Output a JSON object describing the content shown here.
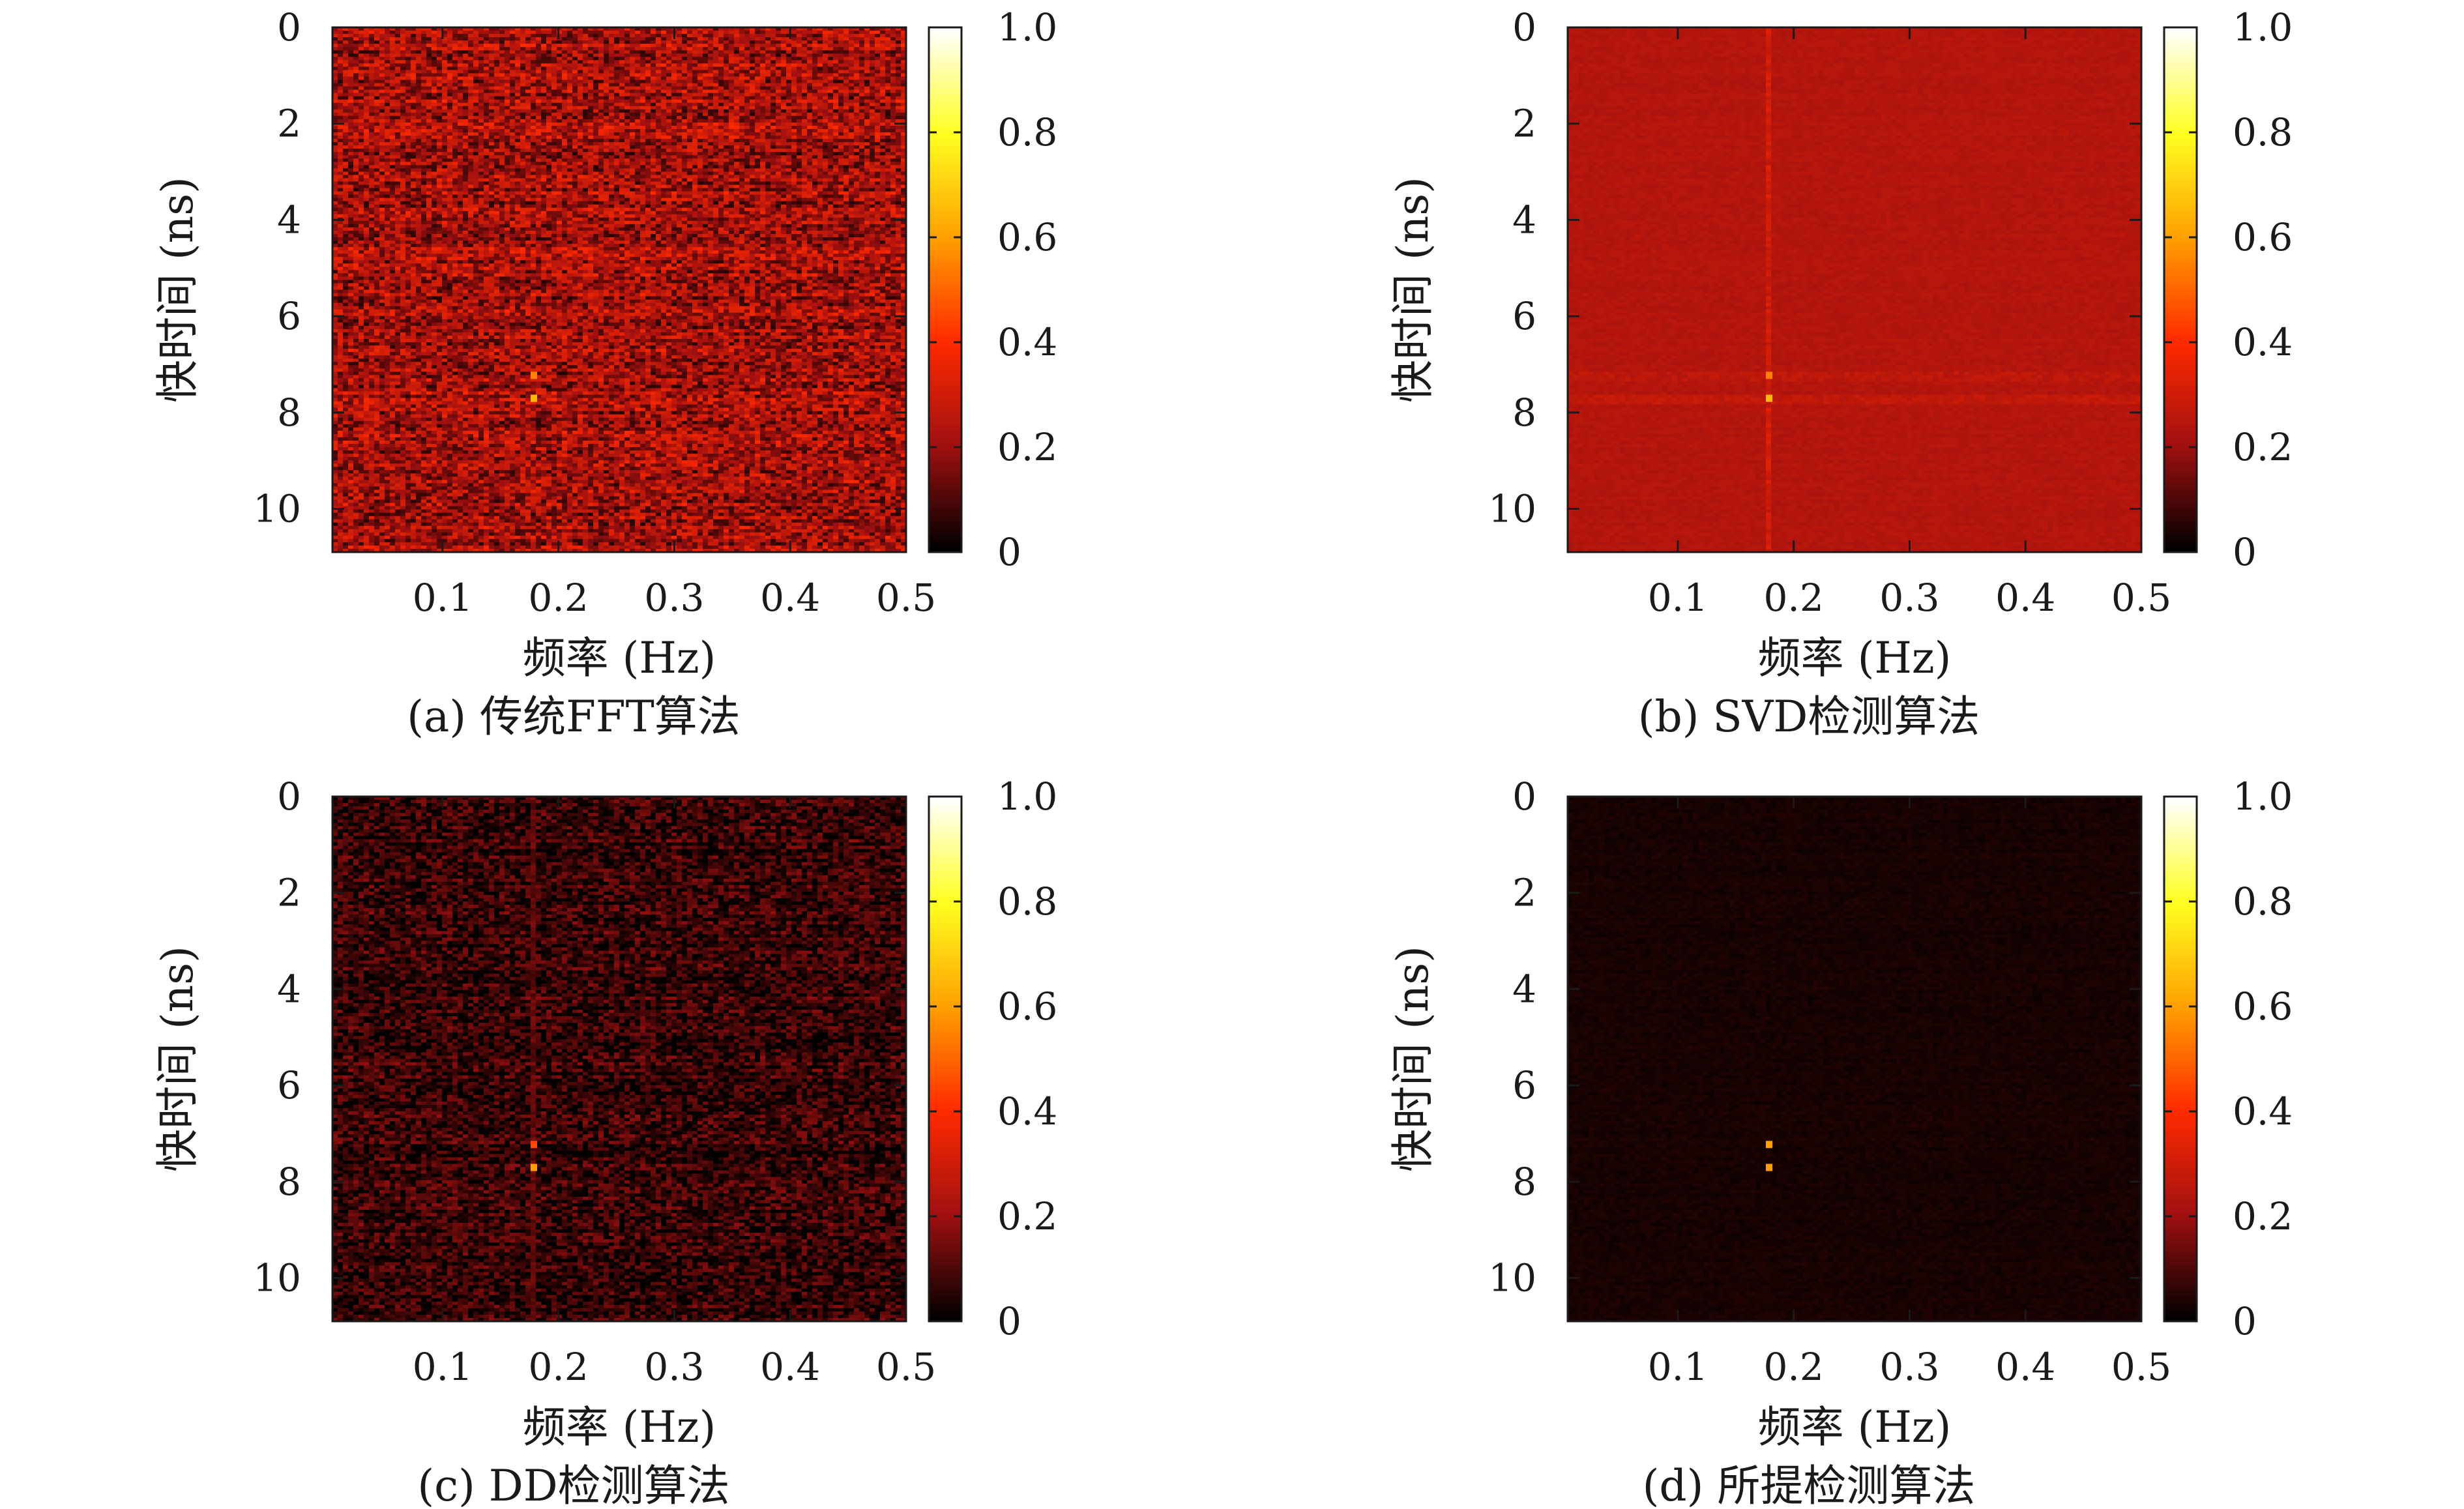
{
  "colors": {
    "colormap": [
      "#000000",
      "#a01010",
      "#ff2a00",
      "#ffa000",
      "#ffff20",
      "#ffffff"
    ],
    "axis": "#1a1a1a",
    "background": "#ffffff"
  },
  "chart_data": [
    {
      "type": "heatmap",
      "caption": "(a) 传统FFT算法",
      "xlabel": "频率 (Hz)",
      "ylabel": "快时间 (ns)",
      "xlim": [
        0.005,
        0.5
      ],
      "ylim": [
        0,
        10.9
      ],
      "xticks": [
        0.1,
        0.2,
        0.3,
        0.4,
        0.5
      ],
      "yticks": [
        0,
        2,
        4,
        6,
        8,
        10
      ],
      "colorbar": {
        "range": [
          0,
          1.0
        ],
        "ticks": [
          "0",
          "0.2",
          "0.4",
          "0.6",
          "0.8",
          "1.0"
        ]
      },
      "background_level": 0.22,
      "noise_level": 0.14,
      "vertical_lines": [],
      "horizontal_bands": [],
      "peaks": [
        {
          "x": 0.18,
          "y": 7.25,
          "value": 0.55
        },
        {
          "x": 0.18,
          "y": 7.75,
          "value": 0.65
        }
      ]
    },
    {
      "type": "heatmap",
      "caption": "(b) SVD检测算法",
      "xlabel": "频率 (Hz)",
      "ylabel": "快时间 (ns)",
      "xlim": [
        0.005,
        0.5
      ],
      "ylim": [
        0,
        10.9
      ],
      "xticks": [
        0.1,
        0.2,
        0.3,
        0.4,
        0.5
      ],
      "yticks": [
        0,
        2,
        4,
        6,
        8,
        10
      ],
      "colorbar": {
        "range": [
          0,
          1.0
        ],
        "ticks": [
          "0",
          "0.2",
          "0.4",
          "0.6",
          "0.8",
          "1.0"
        ]
      },
      "background_level": 0.24,
      "noise_level": 0.015,
      "vertical_lines": [
        {
          "x": 0.18,
          "value": 0.3
        }
      ],
      "horizontal_bands": [
        {
          "y": 7.25,
          "value": 0.26
        },
        {
          "y": 7.75,
          "value": 0.27
        }
      ],
      "peaks": [
        {
          "x": 0.18,
          "y": 7.25,
          "value": 0.55
        },
        {
          "x": 0.18,
          "y": 7.75,
          "value": 0.65
        }
      ]
    },
    {
      "type": "heatmap",
      "caption": "(c) DD检测算法",
      "xlabel": "频率 (Hz)",
      "ylabel": "快时间 (ns)",
      "xlim": [
        0.005,
        0.5
      ],
      "ylim": [
        0,
        10.9
      ],
      "xticks": [
        0.1,
        0.2,
        0.3,
        0.4,
        0.5
      ],
      "yticks": [
        0,
        2,
        4,
        6,
        8,
        10
      ],
      "colorbar": {
        "range": [
          0,
          1.0
        ],
        "ticks": [
          "0",
          "0.2",
          "0.4",
          "0.6",
          "0.8",
          "1.0"
        ]
      },
      "background_level": 0.07,
      "noise_level": 0.09,
      "vertical_lines": [
        {
          "x": 0.18,
          "value": 0.12
        }
      ],
      "horizontal_bands": [],
      "peaks": [
        {
          "x": 0.18,
          "y": 7.25,
          "value": 0.45
        },
        {
          "x": 0.18,
          "y": 7.75,
          "value": 0.6
        }
      ]
    },
    {
      "type": "heatmap",
      "caption": "(d) 所提检测算法",
      "xlabel": "频率 (Hz)",
      "ylabel": "快时间 (ns)",
      "xlim": [
        0.005,
        0.5
      ],
      "ylim": [
        0,
        10.9
      ],
      "xticks": [
        0.1,
        0.2,
        0.3,
        0.4,
        0.5
      ],
      "yticks": [
        0,
        2,
        4,
        6,
        8,
        10
      ],
      "colorbar": {
        "range": [
          0,
          1.0
        ],
        "ticks": [
          "0",
          "0.2",
          "0.4",
          "0.6",
          "0.8",
          "1.0"
        ]
      },
      "background_level": 0.03,
      "noise_level": 0.012,
      "vertical_lines": [],
      "horizontal_bands": [],
      "peaks": [
        {
          "x": 0.18,
          "y": 7.25,
          "value": 0.6
        },
        {
          "x": 0.18,
          "y": 7.75,
          "value": 0.6
        }
      ]
    }
  ]
}
